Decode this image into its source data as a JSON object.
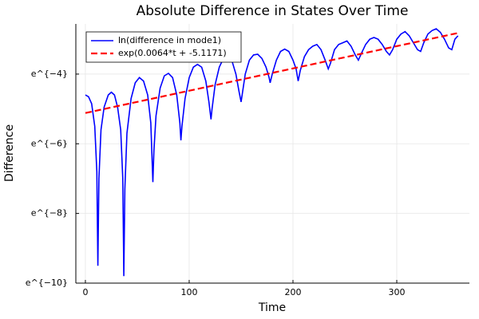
{
  "chart_data": {
    "type": "line",
    "title": "Absolute Difference in States Over Time",
    "xlabel": "Time",
    "ylabel": "Difference",
    "series": [
      {
        "name": "ln(difference in mode1)",
        "color": "#0000ff",
        "dash": false,
        "x": [
          0,
          3,
          6,
          9,
          11,
          12,
          13,
          15,
          18,
          22,
          25,
          28,
          31,
          34,
          36,
          37,
          38,
          40,
          44,
          48,
          52,
          56,
          60,
          63,
          65,
          66,
          68,
          72,
          76,
          80,
          84,
          88,
          91,
          92,
          93,
          96,
          100,
          104,
          108,
          112,
          116,
          119,
          121,
          122,
          125,
          129,
          133,
          137,
          141,
          145,
          148,
          150,
          151,
          154,
          158,
          162,
          166,
          170,
          174,
          177,
          178,
          180,
          184,
          188,
          192,
          196,
          200,
          203,
          205,
          207,
          211,
          215,
          219,
          223,
          227,
          231,
          234,
          236,
          240,
          244,
          248,
          252,
          256,
          260,
          263,
          266,
          270,
          274,
          278,
          282,
          286,
          290,
          293,
          296,
          300,
          304,
          308,
          312,
          316,
          320,
          323,
          326,
          330,
          334,
          338,
          342,
          346,
          350,
          353,
          356,
          359
        ],
        "values": [
          -4.6,
          -4.65,
          -4.85,
          -5.5,
          -6.8,
          -9.5,
          -7.0,
          -5.6,
          -4.95,
          -4.6,
          -4.52,
          -4.6,
          -4.95,
          -5.6,
          -7.0,
          -9.8,
          -7.3,
          -5.7,
          -4.7,
          -4.25,
          -4.1,
          -4.2,
          -4.6,
          -5.4,
          -7.1,
          -6.2,
          -5.2,
          -4.4,
          -4.05,
          -3.98,
          -4.1,
          -4.6,
          -5.4,
          -5.9,
          -5.5,
          -4.7,
          -4.1,
          -3.8,
          -3.72,
          -3.8,
          -4.2,
          -4.8,
          -5.3,
          -5.0,
          -4.3,
          -3.8,
          -3.55,
          -3.5,
          -3.6,
          -4.0,
          -4.5,
          -4.8,
          -4.6,
          -4.0,
          -3.6,
          -3.45,
          -3.43,
          -3.55,
          -3.8,
          -4.1,
          -4.25,
          -4.0,
          -3.6,
          -3.35,
          -3.28,
          -3.35,
          -3.6,
          -3.85,
          -4.2,
          -3.9,
          -3.5,
          -3.3,
          -3.2,
          -3.15,
          -3.3,
          -3.6,
          -3.85,
          -3.7,
          -3.3,
          -3.15,
          -3.1,
          -3.05,
          -3.2,
          -3.45,
          -3.6,
          -3.4,
          -3.15,
          -3.0,
          -2.95,
          -3.0,
          -3.15,
          -3.35,
          -3.45,
          -3.3,
          -3.0,
          -2.85,
          -2.78,
          -2.9,
          -3.1,
          -3.3,
          -3.35,
          -3.1,
          -2.85,
          -2.75,
          -2.7,
          -2.8,
          -3.0,
          -3.25,
          -3.3,
          -3.0,
          -2.9
        ]
      },
      {
        "name": "exp(0.0064*t + -5.1171)",
        "color": "#ff0000",
        "dash": true,
        "x": [
          0,
          360
        ],
        "values": [
          -5.1171,
          -2.8131
        ]
      }
    ],
    "xlim": [
      -9.2,
      370
    ],
    "xticks": [
      0,
      100,
      200,
      300
    ],
    "ylim": [
      -10,
      -2.56
    ],
    "yticks": [
      {
        "value": -10,
        "label": "e^{−10}"
      },
      {
        "value": -8,
        "label": "e^{−8}"
      },
      {
        "value": -6,
        "label": "e^{−6}"
      },
      {
        "value": -4,
        "label": "e^{−4}"
      }
    ],
    "grid": true,
    "legend": "top-left"
  }
}
